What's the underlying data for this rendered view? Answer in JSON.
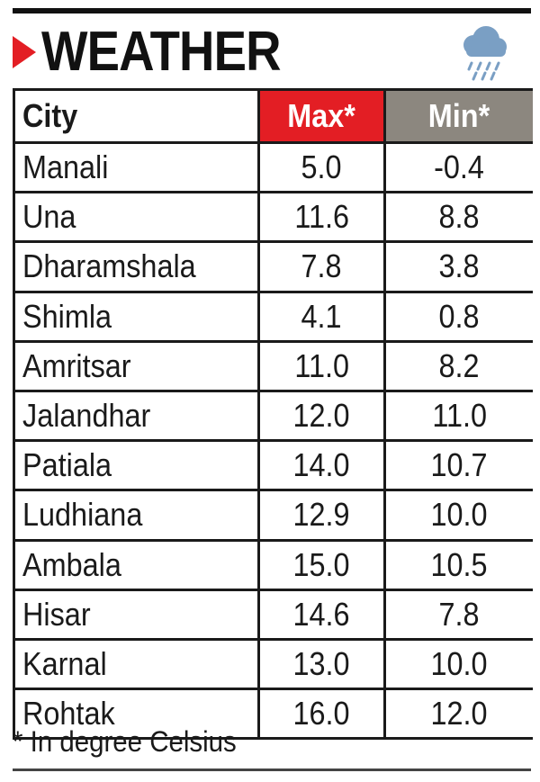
{
  "header": {
    "title": "WEATHER",
    "icon": "rain-cloud-icon",
    "accent_color": "#e31e24"
  },
  "table": {
    "columns": [
      "City",
      "Max*",
      "Min*"
    ],
    "header_colors": {
      "max": "#e31e24",
      "min": "#8c877f"
    },
    "rows": [
      {
        "city": "Manali",
        "max": "5.0",
        "min": "-0.4"
      },
      {
        "city": "Una",
        "max": "11.6",
        "min": "8.8"
      },
      {
        "city": "Dharamshala",
        "max": "7.8",
        "min": "3.8"
      },
      {
        "city": "Shimla",
        "max": "4.1",
        "min": "0.8"
      },
      {
        "city": "Amritsar",
        "max": "11.0",
        "min": "8.2"
      },
      {
        "city": "Jalandhar",
        "max": "12.0",
        "min": "11.0"
      },
      {
        "city": "Patiala",
        "max": "14.0",
        "min": "10.7"
      },
      {
        "city": "Ludhiana",
        "max": "12.9",
        "min": "10.0"
      },
      {
        "city": "Ambala",
        "max": "15.0",
        "min": "10.5"
      },
      {
        "city": "Hisar",
        "max": "14.6",
        "min": "7.8"
      },
      {
        "city": "Karnal",
        "max": "13.0",
        "min": "10.0"
      },
      {
        "city": "Rohtak",
        "max": "16.0",
        "min": "12.0"
      }
    ]
  },
  "footnote": "* In degree Celsius"
}
